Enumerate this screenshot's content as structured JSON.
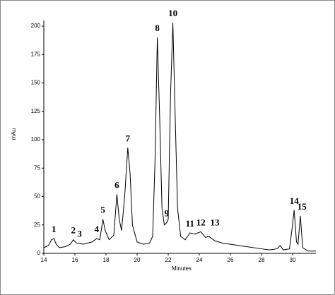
{
  "chart_data": {
    "type": "line",
    "color": "#000000",
    "x_label": "Minutes",
    "y_label": "mAu",
    "xlim": [
      14,
      31.5
    ],
    "ylim": [
      0,
      205
    ],
    "xticks": [
      14,
      16,
      18,
      20,
      22,
      24,
      26,
      28,
      30
    ],
    "yticks": [
      0,
      25,
      50,
      75,
      100,
      125,
      150,
      175,
      200
    ],
    "x": [
      14.0,
      14.3,
      14.5,
      14.65,
      14.8,
      15.0,
      15.4,
      15.7,
      15.9,
      16.1,
      16.3,
      16.5,
      16.8,
      17.1,
      17.4,
      17.6,
      17.8,
      17.95,
      18.2,
      18.5,
      18.7,
      18.85,
      19.0,
      19.2,
      19.4,
      19.55,
      19.7,
      20.0,
      20.4,
      20.8,
      21.0,
      21.15,
      21.3,
      21.45,
      21.6,
      21.75,
      21.9,
      22.0,
      22.15,
      22.3,
      22.45,
      22.6,
      22.8,
      23.1,
      23.4,
      23.7,
      24.1,
      24.4,
      24.6,
      25.0,
      25.5,
      26.0,
      27.0,
      28.0,
      28.5,
      29.0,
      29.2,
      29.4,
      29.8,
      29.95,
      30.1,
      30.25,
      30.35,
      30.5,
      30.65,
      31.0,
      31.5
    ],
    "values": [
      5,
      7,
      12,
      13,
      8,
      5,
      6,
      8,
      12,
      9,
      9,
      8,
      9,
      10,
      13,
      12,
      30,
      20,
      12,
      16,
      52,
      30,
      20,
      50,
      93,
      70,
      25,
      10,
      8,
      9,
      15,
      80,
      190,
      120,
      40,
      25,
      27,
      30,
      140,
      203,
      120,
      40,
      15,
      12,
      18,
      17,
      19,
      14,
      15,
      11,
      9,
      8,
      6,
      4,
      3,
      4,
      7,
      3,
      4,
      20,
      38,
      10,
      8,
      33,
      5,
      2,
      2
    ],
    "annotations": [
      {
        "text": "1",
        "x": 14.65,
        "y": 13
      },
      {
        "text": "2",
        "x": 15.9,
        "y": 12
      },
      {
        "text": "3",
        "x": 16.3,
        "y": 9
      },
      {
        "text": "4",
        "x": 17.4,
        "y": 13
      },
      {
        "text": "5",
        "x": 17.8,
        "y": 30
      },
      {
        "text": "6",
        "x": 18.7,
        "y": 52
      },
      {
        "text": "7",
        "x": 19.4,
        "y": 93
      },
      {
        "text": "8",
        "x": 21.3,
        "y": 190
      },
      {
        "text": "9",
        "x": 21.9,
        "y": 27
      },
      {
        "text": "10",
        "x": 22.3,
        "y": 203
      },
      {
        "text": "11",
        "x": 23.4,
        "y": 18
      },
      {
        "text": "12",
        "x": 24.1,
        "y": 19
      },
      {
        "text": "13",
        "x": 25.0,
        "y": 19
      },
      {
        "text": "14",
        "x": 30.1,
        "y": 38
      },
      {
        "text": "15",
        "x": 30.6,
        "y": 33
      }
    ]
  }
}
